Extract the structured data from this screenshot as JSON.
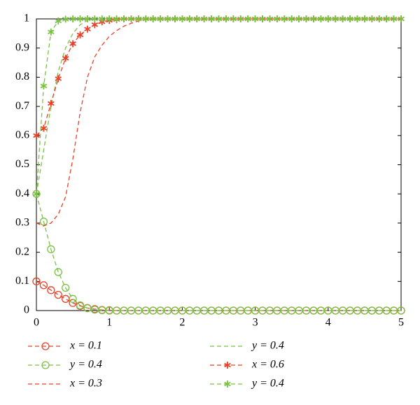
{
  "chart_data": {
    "type": "line",
    "x": [
      0,
      0.1,
      0.2,
      0.3,
      0.4,
      0.5,
      0.6,
      0.7,
      0.8,
      0.9,
      1,
      1.1,
      1.2,
      1.3,
      1.4,
      1.5,
      1.6,
      1.7,
      1.8,
      1.9,
      2,
      2.1,
      2.2,
      2.3,
      2.4,
      2.5,
      2.6,
      2.7,
      2.8,
      2.9,
      3,
      3.1,
      3.2,
      3.3,
      3.4,
      3.5,
      3.6,
      3.7,
      3.8,
      3.9,
      4,
      4.1,
      4.2,
      4.3,
      4.4,
      4.5,
      4.6,
      4.7,
      4.8,
      4.9,
      5
    ],
    "series": [
      {
        "name": "x = 0.1",
        "color": "#e8412a",
        "marker": "circle",
        "legend_column": 0,
        "values": [
          0.1,
          0.087,
          0.07,
          0.054,
          0.04,
          0.026,
          0.016,
          0.009,
          0.005,
          0.002,
          0.001,
          0,
          0,
          0,
          0,
          0,
          0,
          0,
          0,
          0,
          0,
          0,
          0,
          0,
          0,
          0,
          0,
          0,
          0,
          0,
          0,
          0,
          0,
          0,
          0,
          0,
          0,
          0,
          0,
          0,
          0,
          0,
          0,
          0,
          0,
          0,
          0,
          0,
          0,
          0,
          0
        ]
      },
      {
        "name": "y = 0.4",
        "color": "#7ac143",
        "marker": "circle",
        "legend_column": 0,
        "values": [
          0.4,
          0.305,
          0.21,
          0.132,
          0.078,
          0.04,
          0.018,
          0.008,
          0.003,
          0.001,
          0,
          0,
          0,
          0,
          0,
          0,
          0,
          0,
          0,
          0,
          0,
          0,
          0,
          0,
          0,
          0,
          0,
          0,
          0,
          0,
          0,
          0,
          0,
          0,
          0,
          0,
          0,
          0,
          0,
          0,
          0,
          0,
          0,
          0,
          0,
          0,
          0,
          0,
          0,
          0,
          0
        ]
      },
      {
        "name": "x = 0.3",
        "color": "#e8412a",
        "marker": "none",
        "legend_column": 0,
        "values": [
          0.3,
          0.29,
          0.3,
          0.33,
          0.39,
          0.52,
          0.68,
          0.8,
          0.87,
          0.91,
          0.94,
          0.96,
          0.975,
          0.985,
          0.993,
          0.997,
          1,
          1,
          1,
          1,
          1,
          1,
          1,
          1,
          1,
          1,
          1,
          1,
          1,
          1,
          1,
          1,
          1,
          1,
          1,
          1,
          1,
          1,
          1,
          1,
          1,
          1,
          1,
          1,
          1,
          1,
          1,
          1,
          1,
          1,
          1
        ]
      },
      {
        "name": "y = 0.4",
        "color": "#7ac143",
        "marker": "none",
        "legend_column": 1,
        "values": [
          0.4,
          0.55,
          0.7,
          0.82,
          0.9,
          0.95,
          0.98,
          0.995,
          1,
          1,
          1,
          1,
          1,
          1,
          1,
          1,
          1,
          1,
          1,
          1,
          1,
          1,
          1,
          1,
          1,
          1,
          1,
          1,
          1,
          1,
          1,
          1,
          1,
          1,
          1,
          1,
          1,
          1,
          1,
          1,
          1,
          1,
          1,
          1,
          1,
          1,
          1,
          1,
          1,
          1,
          1
        ]
      },
      {
        "name": "x = 0.6",
        "color": "#e8412a",
        "marker": "star",
        "legend_column": 1,
        "values": [
          0.6,
          0.625,
          0.71,
          0.795,
          0.865,
          0.915,
          0.945,
          0.965,
          0.98,
          0.99,
          0.995,
          0.998,
          1,
          1,
          1,
          1,
          1,
          1,
          1,
          1,
          1,
          1,
          1,
          1,
          1,
          1,
          1,
          1,
          1,
          1,
          1,
          1,
          1,
          1,
          1,
          1,
          1,
          1,
          1,
          1,
          1,
          1,
          1,
          1,
          1,
          1,
          1,
          1,
          1,
          1,
          1
        ]
      },
      {
        "name": "y = 0.4",
        "color": "#7ac143",
        "marker": "star",
        "legend_column": 1,
        "values": [
          0.4,
          0.77,
          0.955,
          0.993,
          0.999,
          1,
          1,
          1,
          1,
          1,
          1,
          1,
          1,
          1,
          1,
          1,
          1,
          1,
          1,
          1,
          1,
          1,
          1,
          1,
          1,
          1,
          1,
          1,
          1,
          1,
          1,
          1,
          1,
          1,
          1,
          1,
          1,
          1,
          1,
          1,
          1,
          1,
          1,
          1,
          1,
          1,
          1,
          1,
          1,
          1,
          1
        ]
      }
    ],
    "xlim": [
      0,
      5
    ],
    "xticks": [
      0,
      1,
      2,
      3,
      4,
      5
    ],
    "ylim": [
      0,
      1
    ],
    "yticks": [
      0,
      0.1,
      0.2,
      0.3,
      0.4,
      0.5,
      0.6,
      0.7,
      0.8,
      0.9,
      1
    ],
    "grid": false,
    "legend": "bottom"
  }
}
